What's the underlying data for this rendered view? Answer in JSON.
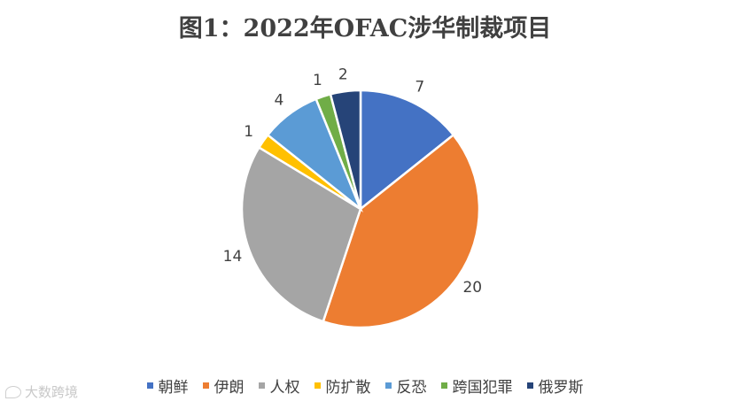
{
  "chart_data": {
    "type": "pie",
    "title": "图1：2022年OFAC涉华制裁项目",
    "categories": [
      "朝鲜",
      "伊朗",
      "人权",
      "防扩散",
      "反恐",
      "跨国犯罪",
      "俄罗斯"
    ],
    "values": [
      7,
      20,
      14,
      1,
      4,
      1,
      2
    ],
    "colors": [
      "#4472C4",
      "#ED7D31",
      "#A5A5A5",
      "#FFC000",
      "#5B9BD5",
      "#70AD47",
      "#264478"
    ],
    "legend_position": "bottom",
    "data_labels": true
  },
  "watermark": {
    "text": "大数跨境",
    "icon": "logo-icon"
  }
}
